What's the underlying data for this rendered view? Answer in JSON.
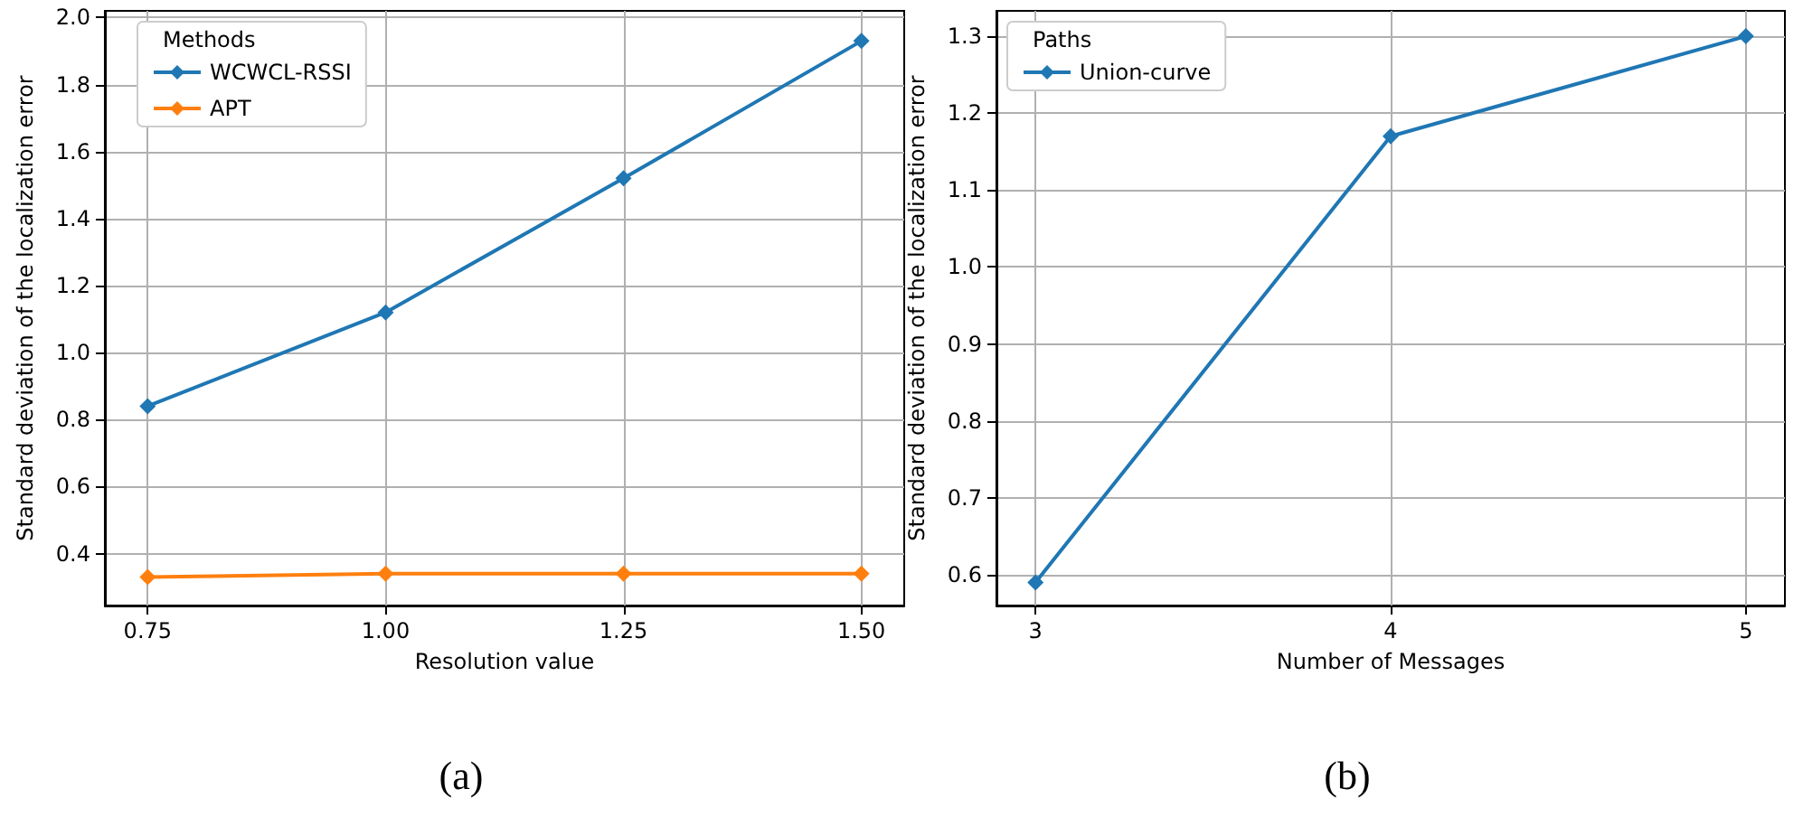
{
  "chart_data": [
    {
      "type": "line",
      "xlabel": "Resolution value",
      "ylabel": "Standard deviation of the localization error",
      "legend_title": "Methods",
      "annotations": [
        "(a)"
      ],
      "x": [
        0.75,
        1.0,
        1.25,
        1.5
      ],
      "series": [
        {
          "name": "WCWCL-RSSI",
          "color": "#1f77b4",
          "values": [
            0.84,
            1.12,
            1.52,
            1.93
          ]
        },
        {
          "name": "APT",
          "color": "#ff7f0e",
          "values": [
            0.33,
            0.34,
            0.34,
            0.34
          ]
        }
      ],
      "xlim": [
        0.705,
        1.545
      ],
      "xticks": [
        {
          "value": 0.75,
          "label": "0.75"
        },
        {
          "value": 1.0,
          "label": "1.00"
        },
        {
          "value": 1.25,
          "label": "1.25"
        },
        {
          "value": 1.5,
          "label": "1.50"
        }
      ],
      "ylim": [
        0.245,
        2.02
      ],
      "yticks": [
        0.4,
        0.6,
        0.8,
        {
          "value": 1.0,
          "label": "1.0"
        },
        1.2,
        1.4,
        1.6,
        1.8,
        {
          "value": 2.0,
          "label": "2.0"
        }
      ],
      "grid": true,
      "legend": "top left",
      "marker": "diamond",
      "line_style": "solid"
    },
    {
      "type": "line",
      "xlabel": "Number of Messages",
      "ylabel": "Standard deviation of the localization error",
      "legend_title": "Paths",
      "annotations": [
        "(b)"
      ],
      "x": [
        3,
        4,
        5
      ],
      "series": [
        {
          "name": "Union-curve",
          "color": "#1f77b4",
          "values": [
            0.59,
            1.17,
            1.3
          ]
        }
      ],
      "xlim": [
        2.89,
        5.11
      ],
      "xticks": [
        3,
        4,
        5
      ],
      "ylim": [
        0.56,
        1.333
      ],
      "yticks": [
        {
          "value": 0.6,
          "label": "0.6"
        },
        0.7,
        0.8,
        0.9,
        {
          "value": 1.0,
          "label": "1.0"
        },
        1.1,
        1.2,
        1.3
      ],
      "grid": true,
      "legend": "top left",
      "marker": "diamond",
      "line_style": "solid"
    }
  ]
}
